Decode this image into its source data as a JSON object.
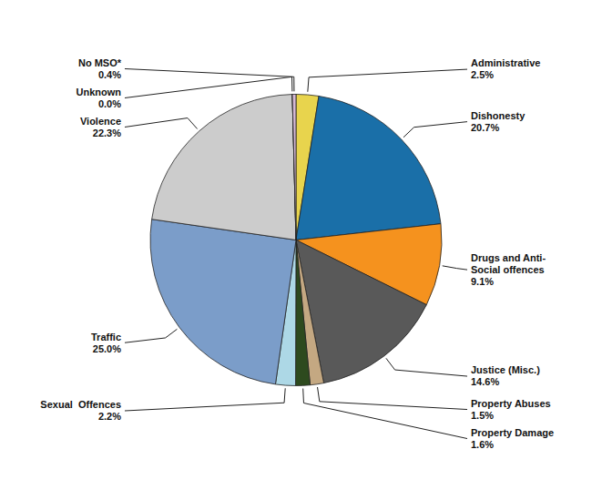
{
  "chart_data": {
    "type": "pie",
    "categories": [
      "Administrative",
      "Dishonesty",
      "Drugs and Anti-\nSocial offences",
      "Justice (Misc.)",
      "Property Abuses",
      "Property Damage",
      "Sexual  Offences",
      "Traffic",
      "Violence",
      "Unknown",
      "No MSO*"
    ],
    "values": [
      2.5,
      20.7,
      9.1,
      14.6,
      1.5,
      1.6,
      2.2,
      25.0,
      22.3,
      0.001,
      0.4
    ],
    "value_labels": [
      "2.5%",
      "20.7%",
      "9.1%",
      "14.6%",
      "1.5%",
      "1.6%",
      "2.2%",
      "25.0%",
      "22.3%",
      "0.0%",
      "0.4%"
    ],
    "colors": [
      "#e8d44d",
      "#1a6fa8",
      "#f5921e",
      "#595959",
      "#c4a882",
      "#2d4a1e",
      "#add8e6",
      "#7b9dc9",
      "#cccccc",
      "#ffffff",
      "#d4b8d4"
    ],
    "data_labels": true
  }
}
